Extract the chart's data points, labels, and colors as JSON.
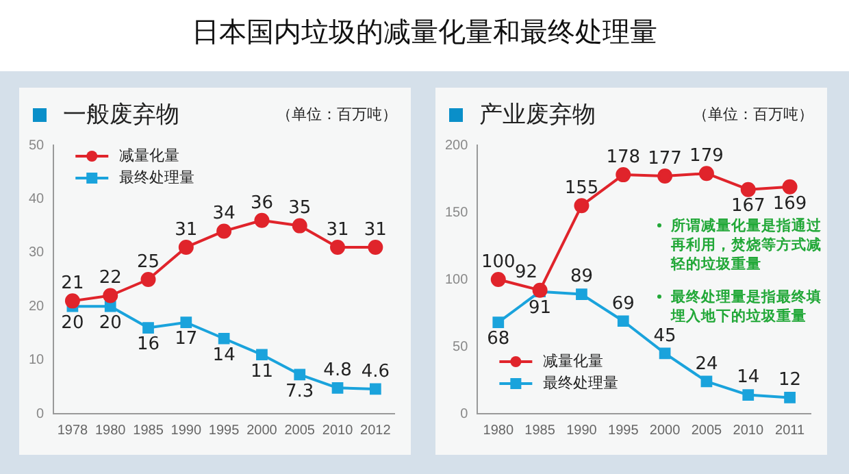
{
  "chart_data": [
    {
      "type": "line",
      "title": "日本国内垃圾的减量化量和最终处理量",
      "subtitle": "一般废弃物",
      "ylabel": "（单位：百万吨）",
      "categories": [
        "1978",
        "1980",
        "1985",
        "1990",
        "1995",
        "2000",
        "2005",
        "2010",
        "2012"
      ],
      "series": [
        {
          "name": "减量化量",
          "color": "#e0242b",
          "marker": "circle",
          "values": [
            21,
            22,
            25,
            31,
            34,
            36,
            35,
            31,
            31
          ]
        },
        {
          "name": "最终处理量",
          "color": "#1aa3dc",
          "marker": "square",
          "values": [
            20,
            20,
            16,
            17,
            14,
            11,
            7.3,
            4.8,
            4.6
          ]
        }
      ],
      "ylim": [
        0,
        50
      ],
      "yticks": [
        0,
        10,
        20,
        30,
        40,
        50
      ],
      "grid": false,
      "legend": "top left",
      "data_labels": true
    },
    {
      "type": "line",
      "subtitle": "产业废弃物",
      "ylabel": "（单位：百万吨）",
      "categories": [
        "1980",
        "1985",
        "1990",
        "1995",
        "2000",
        "2005",
        "2010",
        "2011"
      ],
      "series": [
        {
          "name": "减量化量",
          "color": "#e0242b",
          "marker": "circle",
          "values": [
            100,
            92,
            155,
            178,
            177,
            179,
            167,
            169
          ]
        },
        {
          "name": "最终处理量",
          "color": "#1aa3dc",
          "marker": "square",
          "values": [
            68,
            91,
            89,
            69,
            45,
            24,
            14,
            12
          ]
        }
      ],
      "ylim": [
        0,
        200
      ],
      "yticks": [
        0,
        50,
        100,
        150,
        200
      ],
      "grid": false,
      "legend": "bottom left",
      "data_labels": true,
      "annotations": [
        "所谓减量化量是指通过再利用，焚烧等方式减轻的垃圾重量",
        "最终处理量是指最终填埋入地下的垃圾重量"
      ]
    }
  ]
}
